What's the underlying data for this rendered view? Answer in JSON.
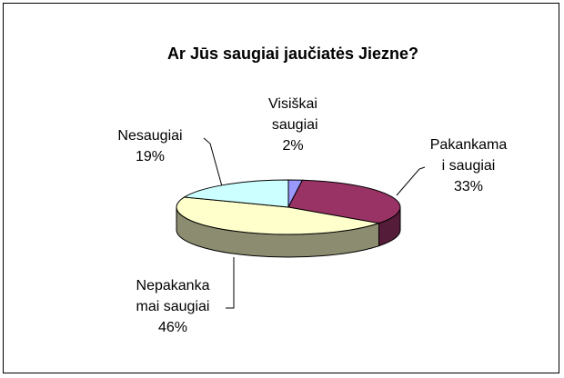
{
  "chart_data": {
    "type": "pie",
    "title": "Ar Jūs saugiai jaučiatės Jiezne?",
    "categories": [
      "Visiškai saugiai",
      "Pakankamai saugiai",
      "Nepakankamai saugiai",
      "Nesaugiai"
    ],
    "values": [
      2,
      33,
      46,
      19
    ],
    "value_labels": [
      "2%",
      "33%",
      "46%",
      "19%"
    ],
    "colors": [
      "#9999ff",
      "#993366",
      "#ffffcc",
      "#ccffff"
    ]
  }
}
